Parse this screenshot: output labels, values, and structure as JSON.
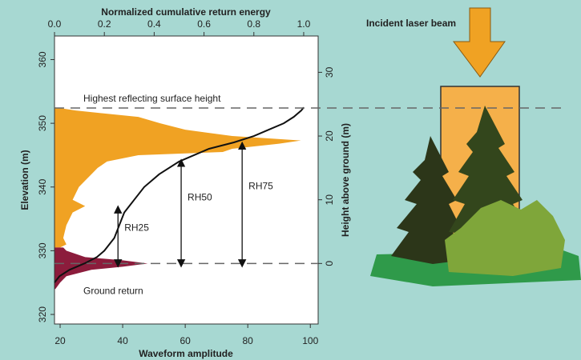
{
  "chart_data": {
    "type": "area",
    "x_label": "Waveform amplitude",
    "x2_label": "Normalized cumulative return energy",
    "y_label": "Elevation (m)",
    "y2_label": "Height above ground (m)",
    "xlim": [
      18.2,
      102.5
    ],
    "xticks": [
      20,
      40,
      60,
      80,
      100
    ],
    "x2lim": [
      0,
      1.058
    ],
    "x2ticks": [
      {
        "value": 0,
        "label": "0.0"
      },
      0.2,
      0.4,
      0.6,
      0.8,
      {
        "value": 1,
        "label": "1.0"
      }
    ],
    "ylim": [
      318.5,
      363.7
    ],
    "yticks": [
      320,
      330,
      340,
      350,
      360
    ],
    "y2lim": [
      -9.5,
      35.7
    ],
    "y2ticks": [
      0,
      10,
      20,
      30
    ],
    "series": [
      {
        "type": "area",
        "color": "#f0a223",
        "y": [
          352.5,
          352,
          351,
          350,
          349,
          348,
          347.3,
          346.8,
          346,
          345.5,
          345,
          344,
          343,
          342,
          341,
          340,
          338,
          337,
          336,
          334,
          332,
          331,
          330.5
        ],
        "x": [
          18.5,
          25,
          45,
          52,
          60,
          75,
          97,
          90,
          75,
          72,
          45,
          35,
          32,
          30,
          28,
          26,
          24,
          28,
          24,
          22,
          21,
          22,
          20
        ]
      },
      {
        "type": "area",
        "color": "#8c1c3c",
        "y": [
          330.5,
          330,
          329,
          328.5,
          328,
          327.5,
          327,
          326,
          325,
          324
        ],
        "x": [
          21,
          22,
          28,
          40,
          48,
          40,
          30,
          22,
          20,
          18.5
        ]
      },
      {
        "type": "line",
        "axis": "x2",
        "color": "#111111",
        "y": [
          325,
          326,
          327,
          328,
          329,
          330,
          332,
          334,
          336,
          338,
          340,
          342,
          344,
          345,
          346,
          347,
          348,
          349,
          350,
          351,
          352,
          352.5
        ],
        "x": [
          0,
          0.02,
          0.06,
          0.12,
          0.17,
          0.2,
          0.24,
          0.26,
          0.28,
          0.32,
          0.36,
          0.42,
          0.5,
          0.56,
          0.62,
          0.72,
          0.8,
          0.86,
          0.92,
          0.96,
          0.99,
          1.0
        ]
      }
    ],
    "reference_lines": [
      {
        "label": "Highest reflecting surface height",
        "y": 352.4
      },
      {
        "label": "Ground return",
        "y": 328
      }
    ],
    "markers": [
      {
        "label": "RH25",
        "x": 38.5,
        "y": 336.5
      },
      {
        "label": "RH50",
        "x": 58.7,
        "y": 343.8
      },
      {
        "label": "RH75",
        "x": 78.2,
        "y": 346.5
      }
    ]
  },
  "illustration": {
    "label": "Incident laser beam"
  }
}
